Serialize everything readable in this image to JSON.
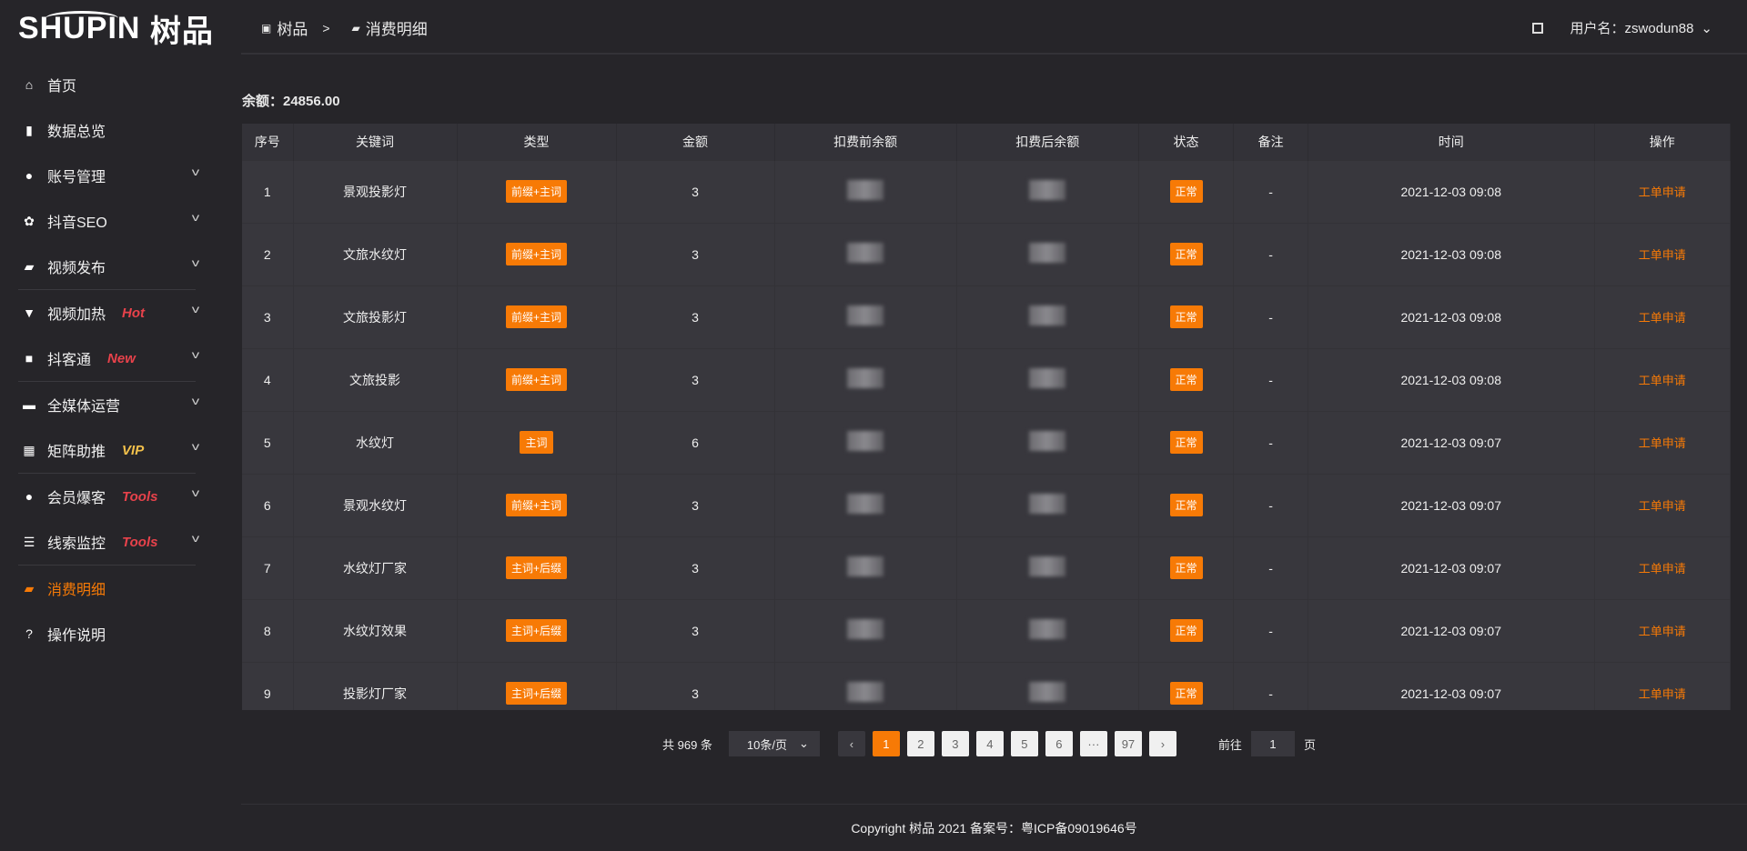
{
  "logo": {
    "text": "SHUPIN",
    "cn": "树品"
  },
  "sidebar": {
    "items": [
      {
        "label": "首页",
        "icon": "home-icon",
        "glyph": "⌂"
      },
      {
        "label": "数据总览",
        "icon": "bar-chart-icon",
        "glyph": "▮"
      },
      {
        "label": "账号管理",
        "icon": "user-icon",
        "glyph": "●",
        "chevron": true
      },
      {
        "label": "抖音SEO",
        "icon": "gear-icon",
        "glyph": "✿",
        "chevron": true
      },
      {
        "label": "视频发布",
        "icon": "video-icon",
        "glyph": "▰",
        "chevron": true
      },
      {
        "label": "视频加热",
        "icon": "torch-icon",
        "glyph": "▼",
        "chevron": true,
        "tag": "Hot"
      },
      {
        "label": "抖客通",
        "icon": "chat-icon",
        "glyph": "■",
        "chevron": true,
        "tag": "New"
      },
      {
        "label": "全媒体运营",
        "icon": "monitor-icon",
        "glyph": "▬",
        "chevron": true
      },
      {
        "label": "矩阵助推",
        "icon": "grid-icon",
        "glyph": "▦",
        "chevron": true,
        "tag": "VIP"
      },
      {
        "label": "会员爆客",
        "icon": "user-icon",
        "glyph": "●",
        "chevron": true,
        "tag": "Tools"
      },
      {
        "label": "线索监控",
        "icon": "sliders-icon",
        "glyph": "☰",
        "chevron": true,
        "tag": "Tools"
      },
      {
        "label": "消费明细",
        "icon": "wallet-icon",
        "glyph": "▰",
        "active": true
      },
      {
        "label": "操作说明",
        "icon": "help-icon",
        "glyph": "?"
      }
    ]
  },
  "header": {
    "breadcrumb": [
      "树品",
      "消费明细"
    ],
    "sep": ">",
    "user_label": "用户名：zswodun88"
  },
  "balance": "余额：24856.00",
  "table": {
    "columns": [
      "序号",
      "关键词",
      "类型",
      "金额",
      "扣费前余额",
      "扣费后余额",
      "状态",
      "备注",
      "时间",
      "操作"
    ],
    "rows": [
      [
        "1",
        "景观投影灯",
        "前缀+主词",
        "3",
        "",
        "",
        "正常",
        "-",
        "2021-12-03 09:08",
        "工单申请"
      ],
      [
        "2",
        "文旅水纹灯",
        "前缀+主词",
        "3",
        "",
        "",
        "正常",
        "-",
        "2021-12-03 09:08",
        "工单申请"
      ],
      [
        "3",
        "文旅投影灯",
        "前缀+主词",
        "3",
        "",
        "",
        "正常",
        "-",
        "2021-12-03 09:08",
        "工单申请"
      ],
      [
        "4",
        "文旅投影",
        "前缀+主词",
        "3",
        "",
        "",
        "正常",
        "-",
        "2021-12-03 09:08",
        "工单申请"
      ],
      [
        "5",
        "水纹灯",
        "主词",
        "6",
        "",
        "",
        "正常",
        "-",
        "2021-12-03 09:07",
        "工单申请"
      ],
      [
        "6",
        "景观水纹灯",
        "前缀+主词",
        "3",
        "",
        "",
        "正常",
        "-",
        "2021-12-03 09:07",
        "工单申请"
      ],
      [
        "7",
        "水纹灯厂家",
        "主词+后缀",
        "3",
        "",
        "",
        "正常",
        "-",
        "2021-12-03 09:07",
        "工单申请"
      ],
      [
        "8",
        "水纹灯效果",
        "主词+后缀",
        "3",
        "",
        "",
        "正常",
        "-",
        "2021-12-03 09:07",
        "工单申请"
      ],
      [
        "9",
        "投影灯厂家",
        "主词+后缀",
        "3",
        "",
        "",
        "正常",
        "-",
        "2021-12-03 09:07",
        "工单申请"
      ]
    ]
  },
  "pagination": {
    "total": "共 969 条",
    "page_size": "10条/页",
    "pages": [
      "1",
      "2",
      "3",
      "4",
      "5",
      "6",
      "···",
      "97"
    ],
    "current": "1",
    "goto_label": "前往",
    "goto_value": "1",
    "page_unit": "页"
  },
  "footer": "Copyright 树品 2021 备案号：粤ICP备09019646号",
  "colors": {
    "accent": "#f77a06",
    "tag_red": "#e8424b",
    "tag_vip": "#f3c14b"
  }
}
